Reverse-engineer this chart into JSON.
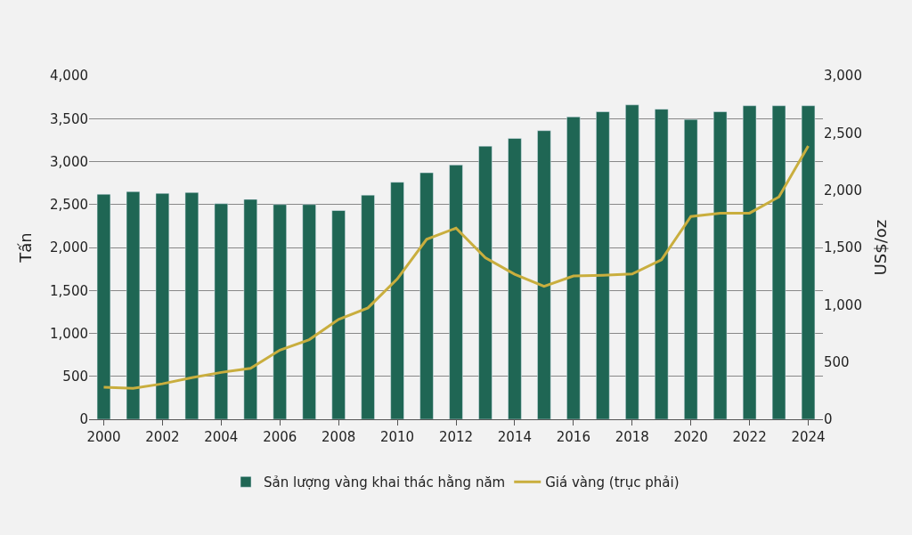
{
  "chart_data": {
    "type": "bar",
    "ylabel": "Tấn",
    "y2label": "US$/oz",
    "x": [
      2000,
      2001,
      2002,
      2003,
      2004,
      2005,
      2006,
      2007,
      2008,
      2009,
      2010,
      2011,
      2012,
      2013,
      2014,
      2015,
      2016,
      2017,
      2018,
      2019,
      2020,
      2021,
      2022,
      2023,
      2024
    ],
    "series": [
      {
        "name": "Sản lượng vàng khai thác hằng năm",
        "color": "#1f6654",
        "values": [
          2620,
          2650,
          2630,
          2640,
          2510,
          2560,
          2500,
          2500,
          2430,
          2610,
          2760,
          2870,
          2960,
          3180,
          3270,
          3360,
          3520,
          3580,
          3660,
          3610,
          3490,
          3580,
          3650,
          3650,
          3650
        ]
      },
      {
        "name": "Giá vàng (trục phải)",
        "type": "line",
        "axis": "y2",
        "color": "#c9ae3e",
        "values": [
          279,
          271,
          310,
          363,
          409,
          445,
          604,
          695,
          872,
          972,
          1225,
          1572,
          1669,
          1411,
          1266,
          1160,
          1251,
          1257,
          1268,
          1393,
          1770,
          1799,
          1800,
          1941,
          2386
        ]
      }
    ],
    "xlim": [
      1999.5,
      2024.5
    ],
    "xticks": [
      2000,
      2002,
      2004,
      2006,
      2008,
      2010,
      2012,
      2014,
      2016,
      2018,
      2020,
      2022,
      2024
    ],
    "ylim": [
      0,
      4000
    ],
    "yticks": [
      0,
      500,
      {
        "value": 1000,
        "label": "1,000"
      },
      {
        "value": 1500,
        "label": "1,500"
      },
      {
        "value": 2000,
        "label": "2,000"
      },
      {
        "value": 2500,
        "label": "2,500"
      },
      {
        "value": 3000,
        "label": "3,000"
      },
      {
        "value": 3500,
        "label": "3,500"
      },
      {
        "value": 4000,
        "label": "4,000"
      }
    ],
    "y2lim": [
      0,
      3000
    ],
    "y2ticks": [
      0,
      500,
      {
        "value": 1000,
        "label": "1,000"
      },
      {
        "value": 1500,
        "label": "1,500"
      },
      {
        "value": 2000,
        "label": "2,000"
      },
      {
        "value": 2500,
        "label": "2,500"
      },
      {
        "value": 3000,
        "label": "3,000"
      }
    ],
    "grid": "y",
    "legend": "bottom"
  }
}
